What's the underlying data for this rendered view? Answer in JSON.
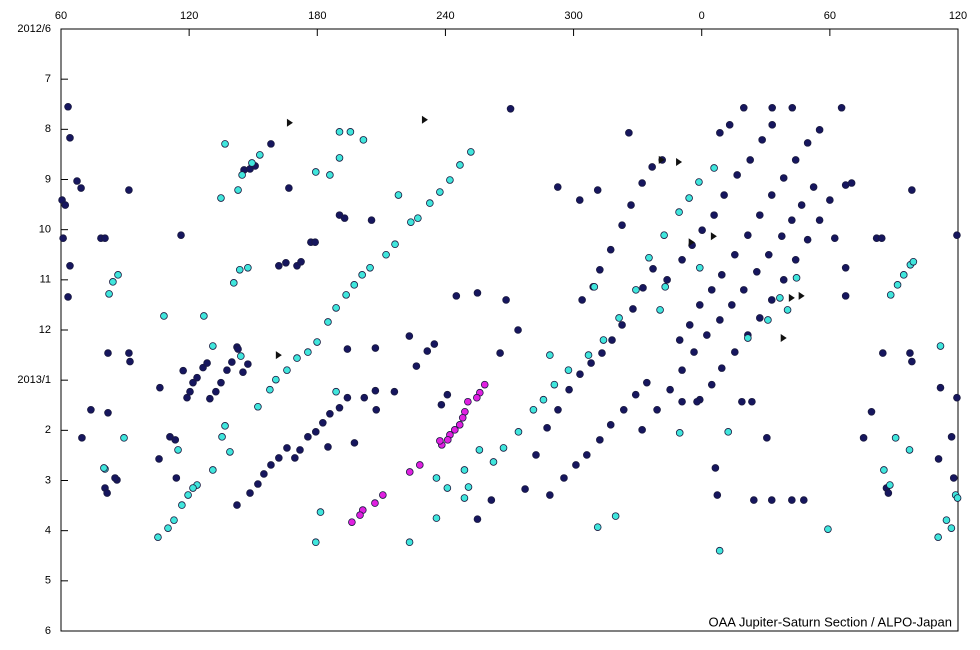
{
  "chart_data": {
    "type": "scatter",
    "annotation": "OAA Jupiter-Saturn Section / ALPO-Japan",
    "xlim": [
      60,
      480
    ],
    "ylim": [
      0,
      12
    ],
    "y_inverted": true,
    "x_axis_position": "top",
    "xticks": [
      60,
      120,
      180,
      240,
      300,
      {
        "value": 360,
        "label": "0"
      },
      {
        "value": 420,
        "label": "60"
      },
      {
        "value": 480,
        "label": "120"
      }
    ],
    "yticks": [
      {
        "value": 0,
        "label": "2012/6"
      },
      {
        "value": 1,
        "label": "7"
      },
      {
        "value": 2,
        "label": "8"
      },
      {
        "value": 3,
        "label": "9"
      },
      {
        "value": 4,
        "label": "10"
      },
      {
        "value": 5,
        "label": "11"
      },
      {
        "value": 6,
        "label": "12"
      },
      {
        "value": 7,
        "label": "2013/1"
      },
      {
        "value": 8,
        "label": "2"
      },
      {
        "value": 9,
        "label": "3"
      },
      {
        "value": 10,
        "label": "4"
      },
      {
        "value": 11,
        "label": "5"
      },
      {
        "value": 12,
        "label": "6"
      }
    ],
    "series": [
      {
        "color": "#16165e",
        "marker": "circle",
        "x": [
          63.3,
          64.2,
          60.5,
          62,
          61,
          64.2,
          63.3,
          69.4,
          67.5,
          91.8,
          78.7,
          80.6,
          82,
          82,
          74,
          69.8,
          80.6,
          81.6,
          86.2,
          85.3,
          91.8,
          92.3,
          106.3,
          105.9,
          111,
          113.5,
          114,
          116.2,
          117.2,
          119,
          120.4,
          121.8,
          123.7,
          126.5,
          128.4,
          129.7,
          132.5,
          134.9,
          137.7,
          140,
          142.4,
          142.9,
          145.2,
          147.5,
          142.4,
          148.5,
          152.2,
          155,
          158.3,
          162,
          165.8,
          169.5,
          171.9,
          175.6,
          179.3,
          182.6,
          185.9,
          185,
          190.4,
          197.4,
          194.1,
          202,
          207.6,
          207.2,
          216.1,
          145.7,
          148.5,
          150.9,
          158.3,
          162,
          165.3,
          166.7,
          170.5,
          172.4,
          177,
          179,
          190.4,
          192.8,
          194.1,
          205.4,
          207.2,
          223.1,
          226.4,
          231.5,
          234.8,
          238.1,
          240.9,
          245.1,
          255,
          255,
          261.5,
          270.5,
          268.4,
          265.6,
          274,
          277.3,
          282.4,
          287.6,
          292.7,
          297.9,
          303,
          308.2,
          313.3,
          318,
          322.7,
          327.8,
          332.5,
          337.2,
          288.9,
          295.5,
          301.1,
          306.2,
          312.3,
          317.4,
          323.5,
          329.1,
          334.3,
          304,
          309.2,
          312.3,
          317.4,
          322.7,
          326.9,
          332.1,
          336.8,
          341.5,
          325.9,
          292.6,
          302.9,
          311.3,
          343.8,
          350.8,
          355.5,
          360.2,
          365.8,
          370.5,
          376.6,
          382.7,
          388.3,
          393,
          368.5,
          373.1,
          379.7,
          393,
          402.4,
          349.7,
          354.4,
          359.1,
          364.7,
          369.4,
          375.5,
          381.6,
          387.2,
          392.8,
          398.4,
          404,
          409.6,
          415.2,
          425.5,
          359.1,
          364.7,
          369.4,
          375.5,
          381.6,
          387.2,
          392.8,
          398.4,
          404,
          409.6,
          415.2,
          420,
          427.4,
          430.2,
          332.1,
          339.1,
          345.2,
          350.8,
          356.4,
          362.4,
          368.5,
          374.1,
          379.7,
          385.8,
          391.4,
          397.5,
          402.2,
          406.8,
          412.4,
          350.8,
          357.8,
          378.8,
          383.5,
          384.4,
          392.8,
          402.2,
          407.8,
          390.5,
          366.4,
          367.3,
          427.4,
          427.4,
          422.3,
          441.9,
          444.3,
          444.8,
          458.4,
          457.5,
          458.4,
          439.5,
          435.8,
          446.5,
          447.4,
          471.8,
          470.9,
          477,
          478,
          479.5,
          479.5
        ],
        "values": [
          1.55,
          2.17,
          3.41,
          3.51,
          4.17,
          4.72,
          5.34,
          3.17,
          3.03,
          3.21,
          4.17,
          4.17,
          6.46,
          7.65,
          7.59,
          8.15,
          9.15,
          9.25,
          8.99,
          8.95,
          6.46,
          6.63,
          7.15,
          8.57,
          8.13,
          8.19,
          8.95,
          4.11,
          6.81,
          7.35,
          7.23,
          7.05,
          6.95,
          6.75,
          6.66,
          7.37,
          7.23,
          7.05,
          6.8,
          6.64,
          6.34,
          6.38,
          6.84,
          6.68,
          9.49,
          9.25,
          9.07,
          8.87,
          8.69,
          8.55,
          8.35,
          8.55,
          8.39,
          8.13,
          8.03,
          7.85,
          7.67,
          8.33,
          7.55,
          8.25,
          7.35,
          7.35,
          7.59,
          7.21,
          7.23,
          2.81,
          2.79,
          2.73,
          2.29,
          4.72,
          4.66,
          3.17,
          4.72,
          4.64,
          4.25,
          4.25,
          3.71,
          3.77,
          6.38,
          3.81,
          6.36,
          6.12,
          6.72,
          6.42,
          6.28,
          7.49,
          7.29,
          5.32,
          5.26,
          9.77,
          9.39,
          1.59,
          5.4,
          6.46,
          6,
          9.17,
          8.49,
          7.95,
          7.59,
          7.19,
          6.88,
          6.66,
          6.46,
          6.2,
          5.9,
          5.58,
          5.16,
          4.78,
          9.29,
          8.95,
          8.69,
          8.49,
          8.19,
          7.89,
          7.59,
          7.29,
          7.05,
          5.4,
          5.14,
          4.8,
          4.4,
          3.91,
          3.51,
          3.07,
          2.75,
          2.61,
          2.07,
          3.15,
          3.41,
          3.21,
          5,
          4.6,
          4.31,
          4.01,
          3.71,
          3.31,
          2.91,
          2.61,
          2.21,
          1.91,
          2.07,
          1.91,
          1.57,
          1.57,
          1.57,
          6.2,
          5.9,
          5.5,
          5.2,
          4.9,
          4.5,
          4.11,
          3.71,
          3.31,
          2.97,
          2.61,
          2.27,
          2.01,
          1.57,
          7.39,
          7.09,
          6.76,
          6.44,
          6.1,
          5.76,
          5.4,
          5,
          4.6,
          4.2,
          3.81,
          3.41,
          3.11,
          3.07,
          7.99,
          7.59,
          7.19,
          6.8,
          6.44,
          6.1,
          5.8,
          5.5,
          5.2,
          4.84,
          4.5,
          4.13,
          3.81,
          3.51,
          3.15,
          7.43,
          7.43,
          7.43,
          7.43,
          9.39,
          9.39,
          9.39,
          9.39,
          8.15,
          8.75,
          9.29,
          5.32,
          4.76,
          4.17,
          4.17,
          4.17,
          6.46,
          3.21,
          6.46,
          6.63,
          7.63,
          8.15,
          9.15,
          9.25,
          7.15,
          8.57,
          8.13,
          8.95,
          4.11,
          7.35
        ]
      },
      {
        "color": "#40e6dc",
        "marker": "circle",
        "x": [
          136.8,
          134.9,
          142.9,
          144.8,
          149.4,
          153.1,
          140.9,
          143.7,
          147.5,
          126.9,
          131.1,
          144.2,
          136.8,
          135.4,
          139.1,
          131.1,
          123.7,
          121.8,
          119.5,
          116.6,
          112.9,
          110.1,
          105.4,
          108.2,
          114.8,
          89.5,
          80.6,
          86.7,
          84.3,
          82.5,
          80.1,
          152.2,
          157.8,
          160.6,
          165.8,
          170.5,
          175.6,
          179.9,
          185,
          188.8,
          193.5,
          197.3,
          201,
          204.7,
          212.2,
          216.4,
          223.8,
          227.1,
          232.7,
          237.4,
          242.1,
          246.8,
          251.9,
          190.4,
          195.5,
          201.6,
          179.3,
          185.9,
          190.4,
          218,
          188.8,
          181.5,
          179.3,
          223.2,
          235.8,
          235.8,
          248.9,
          255.9,
          248.9,
          240.9,
          250.8,
          262.5,
          267.2,
          274.2,
          281.2,
          285.9,
          291,
          297.6,
          307,
          314,
          321.3,
          329.2,
          335.3,
          342.4,
          349.4,
          354.1,
          358.7,
          365.8,
          288.9,
          309.7,
          342.9,
          340.5,
          359.1,
          349.7,
          372.4,
          368.4,
          311.3,
          319.7,
          419.1,
          381.6,
          391,
          396.6,
          404.4,
          400.2,
          448.5,
          451.7,
          454.6,
          457.7,
          459.1,
          445.3,
          448.1,
          450.8,
          457.3,
          471.8,
          474.6,
          476.9,
          470.7,
          478.9,
          479.8
        ],
        "values": [
          2.29,
          3.37,
          3.21,
          2.91,
          2.67,
          2.51,
          5.06,
          4.8,
          4.76,
          5.72,
          6.32,
          6.52,
          7.91,
          8.13,
          8.43,
          8.79,
          9.09,
          9.15,
          9.29,
          9.49,
          9.79,
          9.95,
          10.13,
          5.72,
          8.39,
          8.15,
          8.77,
          4.9,
          5.04,
          5.28,
          8.75,
          7.53,
          7.19,
          6.99,
          6.8,
          6.56,
          6.44,
          6.24,
          5.84,
          5.56,
          5.3,
          5.1,
          4.9,
          4.76,
          4.5,
          4.29,
          3.85,
          3.77,
          3.47,
          3.25,
          3.01,
          2.71,
          2.45,
          2.05,
          2.05,
          2.21,
          2.85,
          2.91,
          2.57,
          3.31,
          7.23,
          9.63,
          10.23,
          10.23,
          9.75,
          8.95,
          8.79,
          8.39,
          9.35,
          9.15,
          9.13,
          8.63,
          8.35,
          8.03,
          7.59,
          7.39,
          7.09,
          6.8,
          6.5,
          6.2,
          5.76,
          5.2,
          4.56,
          4.11,
          3.65,
          3.37,
          3.05,
          2.77,
          6.5,
          5.14,
          5.14,
          5.6,
          4.76,
          8.05,
          8.03,
          10.4,
          9.93,
          9.71,
          9.97,
          6.16,
          5.8,
          5.36,
          4.96,
          5.6,
          5.3,
          5.1,
          4.9,
          4.7,
          4.64,
          8.79,
          9.09,
          8.15,
          8.39,
          6.32,
          9.79,
          9.95,
          10.13,
          9.29,
          9.35
        ]
      },
      {
        "color": "#e020e0",
        "marker": "circle",
        "x": [
          258.4,
          256.1,
          254.7,
          250.5,
          249.1,
          248.1,
          246.7,
          244.4,
          242.1,
          241.1,
          238.3,
          237.4,
          228,
          223.3,
          210.7,
          207,
          201.3,
          200,
          196.2
        ],
        "values": [
          7.09,
          7.25,
          7.35,
          7.43,
          7.63,
          7.75,
          7.89,
          7.99,
          8.09,
          8.19,
          8.29,
          8.21,
          8.69,
          8.83,
          9.29,
          9.45,
          9.59,
          9.69,
          9.83
        ]
      },
      {
        "color": "#111111",
        "marker": "triangle",
        "x": [
          167.2,
          230.4,
          162,
          341.3,
          349.4,
          355.3,
          365.7,
          402.2,
          406.8,
          398.4
        ],
        "values": [
          1.87,
          1.81,
          6.5,
          2.61,
          2.65,
          4.25,
          4.13,
          5.36,
          5.32,
          6.16
        ]
      }
    ]
  }
}
